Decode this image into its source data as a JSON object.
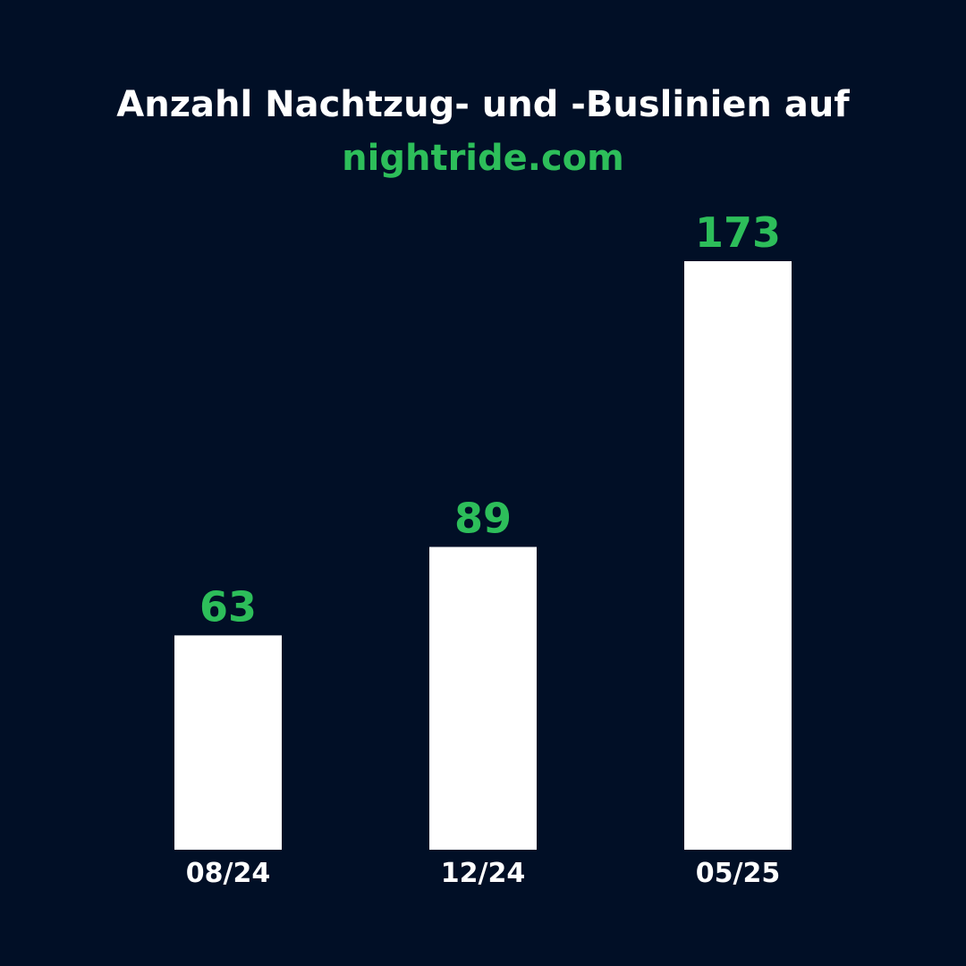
{
  "chart_data": {
    "type": "bar",
    "title": "Anzahl Nachtzug- und -Buslinien auf",
    "subtitle": "nightride.com",
    "categories": [
      "08/24",
      "12/24",
      "05/25"
    ],
    "values": [
      63,
      89,
      173
    ],
    "color": "#ffffff",
    "label_color": "#2dbe5a"
  }
}
